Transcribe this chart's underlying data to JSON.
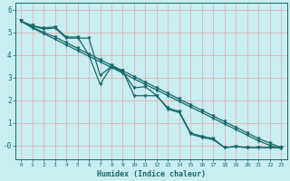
{
  "xlabel": "Humidex (Indice chaleur)",
  "bg_color": "#c8eef0",
  "grid_color": "#e0a8a8",
  "line_color": "#1a6868",
  "xlim": [
    -0.5,
    23.5
  ],
  "ylim": [
    -0.6,
    6.3
  ],
  "yticks": [
    0,
    1,
    2,
    3,
    4,
    5,
    6
  ],
  "ytick_labels": [
    "-0",
    "1",
    "2",
    "3",
    "4",
    "5",
    "6"
  ],
  "xticks": [
    0,
    1,
    2,
    3,
    4,
    5,
    6,
    7,
    8,
    9,
    10,
    11,
    12,
    13,
    14,
    15,
    16,
    17,
    18,
    19,
    20,
    21,
    22,
    23
  ],
  "lines": [
    {
      "x": [
        0,
        1,
        2,
        3,
        4,
        5,
        6,
        7,
        8,
        9,
        10,
        11,
        12,
        13,
        14,
        15,
        16,
        17,
        18,
        19,
        20,
        21,
        22,
        23
      ],
      "y": [
        5.5,
        5.25,
        5.0,
        4.8,
        4.55,
        4.3,
        4.05,
        3.8,
        3.55,
        3.3,
        3.05,
        2.8,
        2.55,
        2.3,
        2.05,
        1.8,
        1.55,
        1.3,
        1.05,
        0.8,
        0.55,
        0.3,
        0.1,
        -0.1
      ]
    },
    {
      "x": [
        0,
        1,
        2,
        3,
        4,
        5,
        6,
        7,
        8,
        9,
        10,
        11,
        12,
        13,
        14,
        15,
        16,
        17,
        18,
        19,
        20,
        21,
        22,
        23
      ],
      "y": [
        5.5,
        5.3,
        5.2,
        5.25,
        4.8,
        4.8,
        4.0,
        2.7,
        3.5,
        3.3,
        2.2,
        2.2,
        2.2,
        1.6,
        1.45,
        0.5,
        0.35,
        0.25,
        -0.1,
        -0.05,
        -0.1,
        -0.1,
        -0.1,
        -0.1
      ]
    },
    {
      "x": [
        0,
        1,
        2,
        3,
        4,
        5,
        6,
        7,
        8,
        9,
        10,
        11,
        12,
        13,
        14,
        15,
        16,
        17,
        18,
        19,
        20,
        21,
        22,
        23
      ],
      "y": [
        5.5,
        5.3,
        5.15,
        5.2,
        4.75,
        4.75,
        4.75,
        3.1,
        3.5,
        3.25,
        2.55,
        2.6,
        2.2,
        1.65,
        1.5,
        0.55,
        0.4,
        0.3,
        -0.1,
        -0.05,
        -0.1,
        -0.1,
        -0.1,
        -0.1
      ]
    },
    {
      "x": [
        0,
        1,
        2,
        3,
        4,
        5,
        6,
        7,
        8,
        9,
        10,
        11,
        12,
        13,
        14,
        15,
        16,
        17,
        18,
        19,
        20,
        21,
        22,
        23
      ],
      "y": [
        5.5,
        5.2,
        4.95,
        4.7,
        4.45,
        4.2,
        3.95,
        3.7,
        3.45,
        3.2,
        2.95,
        2.7,
        2.45,
        2.2,
        1.95,
        1.7,
        1.45,
        1.2,
        0.95,
        0.7,
        0.45,
        0.2,
        0.0,
        -0.15
      ]
    }
  ],
  "marker": "v",
  "markersize": 2.5,
  "linewidth": 0.9
}
